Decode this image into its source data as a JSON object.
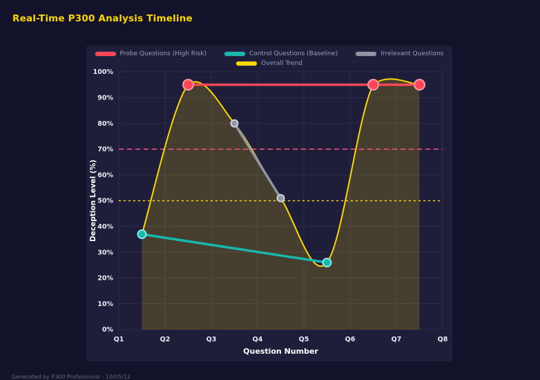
{
  "page": {
    "title": "Real-Time P300 Analysis Timeline",
    "footer": "Generated by P300 Professional - 10/05/12"
  },
  "chart_data": {
    "type": "line",
    "title": "Real-Time P300 Analysis Timeline",
    "xlabel": "Question Number",
    "ylabel": "Deception Level (%)",
    "x_range": [
      1,
      8
    ],
    "y_range": [
      0,
      100
    ],
    "x_tick_values": [
      1,
      2,
      3,
      4,
      5,
      6,
      7,
      8
    ],
    "x_tick_labels": [
      "Q1",
      "Q2",
      "Q3",
      "Q4",
      "Q5",
      "Q6",
      "Q7",
      "Q8"
    ],
    "y_tick_values": [
      0,
      10,
      20,
      30,
      40,
      50,
      60,
      70,
      80,
      90,
      100
    ],
    "y_tick_labels": [
      "0%",
      "10%",
      "20%",
      "30%",
      "40%",
      "50%",
      "60%",
      "70%",
      "80%",
      "90%",
      "100%"
    ],
    "grid": true,
    "legend_position": "top",
    "series": [
      {
        "name": "Probe Questions (High Risk)",
        "color": "#ff4757",
        "marker_stroke": "#ff9aa2",
        "marker_radius": 7.5,
        "line_width": 3.5,
        "points": [
          [
            2.5,
            95
          ],
          [
            6.5,
            95
          ],
          [
            7.5,
            95
          ]
        ]
      },
      {
        "name": "Control Questions (Baseline)",
        "color": "#17b8ae",
        "marker_stroke": "#8ce8e2",
        "marker_radius": 6,
        "line_width": 3.5,
        "points": [
          [
            1.5,
            37
          ],
          [
            5.5,
            26
          ]
        ]
      },
      {
        "name": "Irrelevant Questions",
        "color": "#8f96a3",
        "marker_stroke": "#ced3db",
        "marker_radius": 5,
        "line_width": 3.5,
        "points": [
          [
            3.5,
            80
          ],
          [
            4.5,
            51
          ]
        ]
      },
      {
        "name": "Overall Trend",
        "color": "#ffd700",
        "marker_radius": 0,
        "line_width": 2,
        "smooth": true,
        "fill": "rgba(255,215,0,0.18)",
        "points": [
          [
            1.5,
            37
          ],
          [
            2.5,
            95
          ],
          [
            3.5,
            80
          ],
          [
            4.5,
            51
          ],
          [
            5.5,
            26
          ],
          [
            6.5,
            95
          ],
          [
            7.5,
            95
          ]
        ]
      }
    ],
    "thresholds": [
      {
        "value": 70,
        "color": "#ff5576",
        "dash": "7 5"
      },
      {
        "value": 50,
        "color": "#ffd700",
        "dash": "3 4"
      }
    ]
  }
}
